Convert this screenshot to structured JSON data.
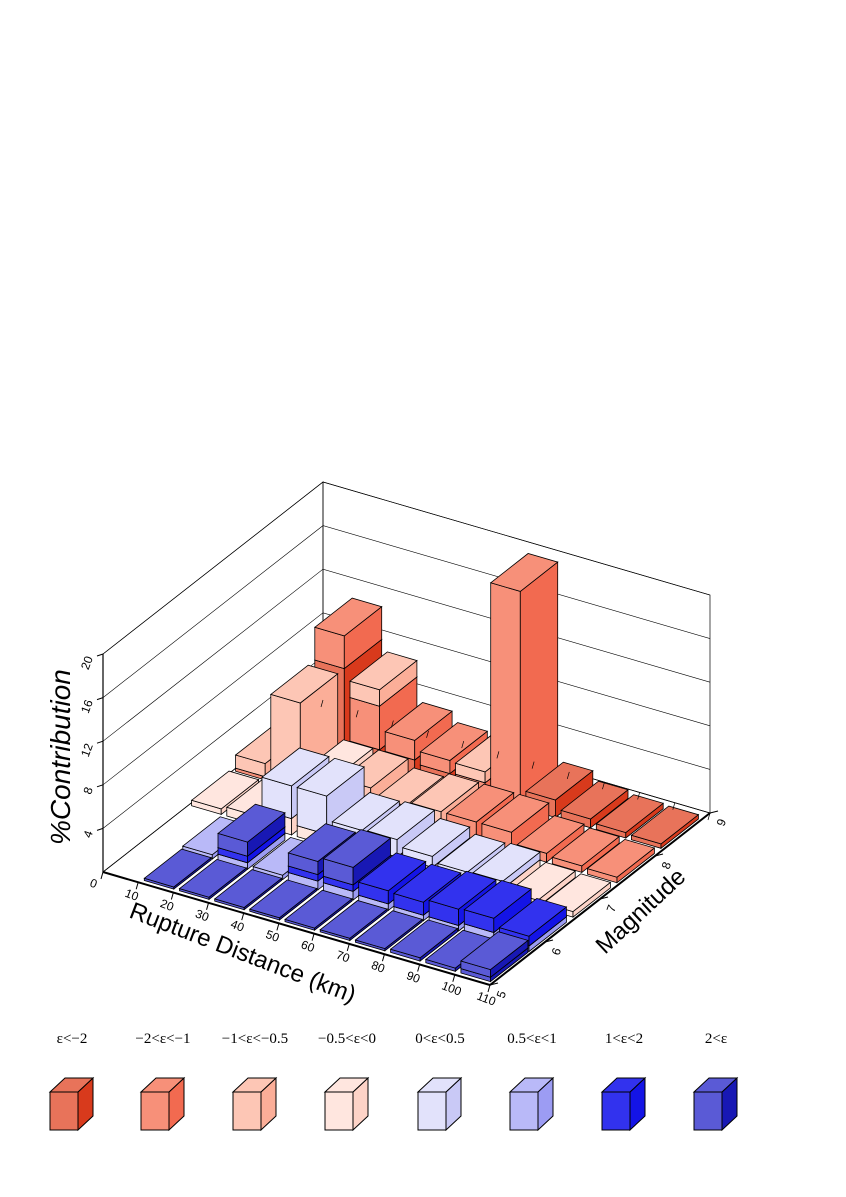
{
  "chart_data": {
    "type": "bar",
    "subtype": "3d-bar-stacked",
    "title": "",
    "xlabel": "Rupture Distance (km)",
    "ylabel": "Magnitude",
    "zlabel": "%Contribution",
    "x_ticks": [
      "0",
      "10",
      "20",
      "30",
      "40",
      "50",
      "60",
      "70",
      "80",
      "90",
      "100",
      "110"
    ],
    "y_ticks": [
      "5",
      "6",
      "7",
      "8",
      "9"
    ],
    "z_ticks": [
      "4",
      "8",
      "12",
      "16",
      "20"
    ],
    "xlim": [
      0,
      110
    ],
    "ylim": [
      5,
      9
    ],
    "zlim": [
      0,
      20
    ],
    "grid": true,
    "legend_position": "bottom",
    "legend": [
      {
        "label": "ε<−2",
        "color": "#e8735a",
        "dark": "#d83a1c"
      },
      {
        "label": "−2<ε<−1",
        "color": "#f79079",
        "dark": "#f26a50"
      },
      {
        "label": "−1<ε<−0.5",
        "color": "#fdc6b5",
        "dark": "#fbae98"
      },
      {
        "label": "−0.5<ε<0",
        "color": "#ffe6df",
        "dark": "#fdd3c7"
      },
      {
        "label": "0<ε<0.5",
        "color": "#e2e2fb",
        "dark": "#c9c9f6"
      },
      {
        "label": "0.5<ε<1",
        "color": "#b9b9f8",
        "dark": "#9c9cf3"
      },
      {
        "label": "1<ε<2",
        "color": "#3232ee",
        "dark": "#1414e6"
      },
      {
        "label": "2<ε",
        "color": "#5a5ad6",
        "dark": "#1818b4"
      }
    ],
    "series": [
      {
        "name": "M9",
        "bars": [
          {
            "x": 5,
            "stack": [
              2.2,
              0.8
            ]
          },
          {
            "x": 15,
            "stack": [
              8.0,
              3.0
            ]
          },
          {
            "x": 25,
            "stack": [
              1.5,
              4.0,
              1.5
            ]
          },
          {
            "x": 35,
            "stack": [
              1.5,
              1.8
            ]
          },
          {
            "x": 45,
            "stack": [
              1.2,
              1.2
            ]
          },
          {
            "x": 55,
            "stack": [
              0.5,
              0.8,
              1.0
            ]
          },
          {
            "x": 65,
            "stack": [
              0.3,
              19.5
            ]
          },
          {
            "x": 75,
            "stack": [
              1.6
            ]
          },
          {
            "x": 85,
            "stack": [
              0.8
            ]
          },
          {
            "x": 95,
            "stack": [
              0.5
            ]
          },
          {
            "x": 105,
            "stack": [
              0.4
            ]
          }
        ]
      },
      {
        "name": "M8",
        "bars": [
          {
            "x": 5,
            "stack": [
              0.3,
              1.2
            ]
          },
          {
            "x": 15,
            "stack": [
              0.5,
              7.5
            ]
          },
          {
            "x": 25,
            "stack": [
              0.3,
              0.6,
              1.2
            ]
          },
          {
            "x": 35,
            "stack": [
              0.5,
              1.6
            ]
          },
          {
            "x": 45,
            "stack": [
              0.4,
              1.0
            ]
          },
          {
            "x": 55,
            "stack": [
              0.3,
              1.5
            ]
          },
          {
            "x": 65,
            "stack": [
              1.8
            ]
          },
          {
            "x": 75,
            "stack": [
              1.8
            ]
          },
          {
            "x": 85,
            "stack": [
              0.8
            ]
          },
          {
            "x": 95,
            "stack": [
              0.6
            ]
          },
          {
            "x": 105,
            "stack": [
              0.5
            ]
          }
        ]
      },
      {
        "name": "M7",
        "bars": [
          {
            "x": 5,
            "stack": [
              0.5
            ]
          },
          {
            "x": 15,
            "stack": [
              0.8
            ]
          },
          {
            "x": 25,
            "stack": [
              1.5,
              3.0
            ]
          },
          {
            "x": 35,
            "stack": [
              1.0,
              3.5
            ]
          },
          {
            "x": 45,
            "stack": [
              0.8,
              1.5
            ]
          },
          {
            "x": 55,
            "stack": [
              0.8,
              1.6
            ]
          },
          {
            "x": 65,
            "stack": [
              0.8,
              1.0
            ]
          },
          {
            "x": 75,
            "stack": [
              0.7,
              0.6
            ]
          },
          {
            "x": 85,
            "stack": [
              0.7,
              0.7
            ]
          },
          {
            "x": 95,
            "stack": [
              0.6
            ]
          },
          {
            "x": 105,
            "stack": [
              0.5
            ]
          }
        ]
      },
      {
        "name": "M6",
        "bars": [
          {
            "x": 5,
            "stack": []
          },
          {
            "x": 15,
            "stack": [
              0.4
            ]
          },
          {
            "x": 25,
            "stack": [
              0.6,
              0.6,
              1.3
            ]
          },
          {
            "x": 35,
            "stack": [
              0.4
            ]
          },
          {
            "x": 45,
            "stack": [
              0.8,
              0.6,
              1.2
            ]
          },
          {
            "x": 55,
            "stack": [
              0.8,
              0.6,
              1.6
            ]
          },
          {
            "x": 65,
            "stack": [
              0.6,
              1.2
            ]
          },
          {
            "x": 75,
            "stack": [
              0.5,
              1.2
            ]
          },
          {
            "x": 85,
            "stack": [
              0.5,
              1.5
            ]
          },
          {
            "x": 95,
            "stack": [
              0.8,
              1.3
            ]
          },
          {
            "x": 105,
            "stack": [
              0.5,
              0.9
            ]
          }
        ]
      },
      {
        "name": "M5",
        "bars": [
          {
            "x": 5,
            "stack": []
          },
          {
            "x": 15,
            "stack": [
              0.2
            ]
          },
          {
            "x": 25,
            "stack": [
              0.2
            ]
          },
          {
            "x": 35,
            "stack": [
              0.2
            ]
          },
          {
            "x": 45,
            "stack": [
              0.2
            ]
          },
          {
            "x": 55,
            "stack": [
              0.2
            ]
          },
          {
            "x": 65,
            "stack": [
              0.2
            ]
          },
          {
            "x": 75,
            "stack": [
              0.2
            ]
          },
          {
            "x": 85,
            "stack": [
              0.3
            ]
          },
          {
            "x": 95,
            "stack": [
              0.3
            ]
          },
          {
            "x": 105,
            "stack": [
              0.4,
              0.7
            ]
          }
        ]
      }
    ],
    "series_colors": {
      "M9": [
        0,
        1,
        2,
        3
      ],
      "M8": [
        1,
        2,
        3
      ],
      "M7": [
        3,
        4,
        5
      ],
      "M6": [
        5,
        6,
        7
      ],
      "M5": [
        7
      ]
    }
  }
}
